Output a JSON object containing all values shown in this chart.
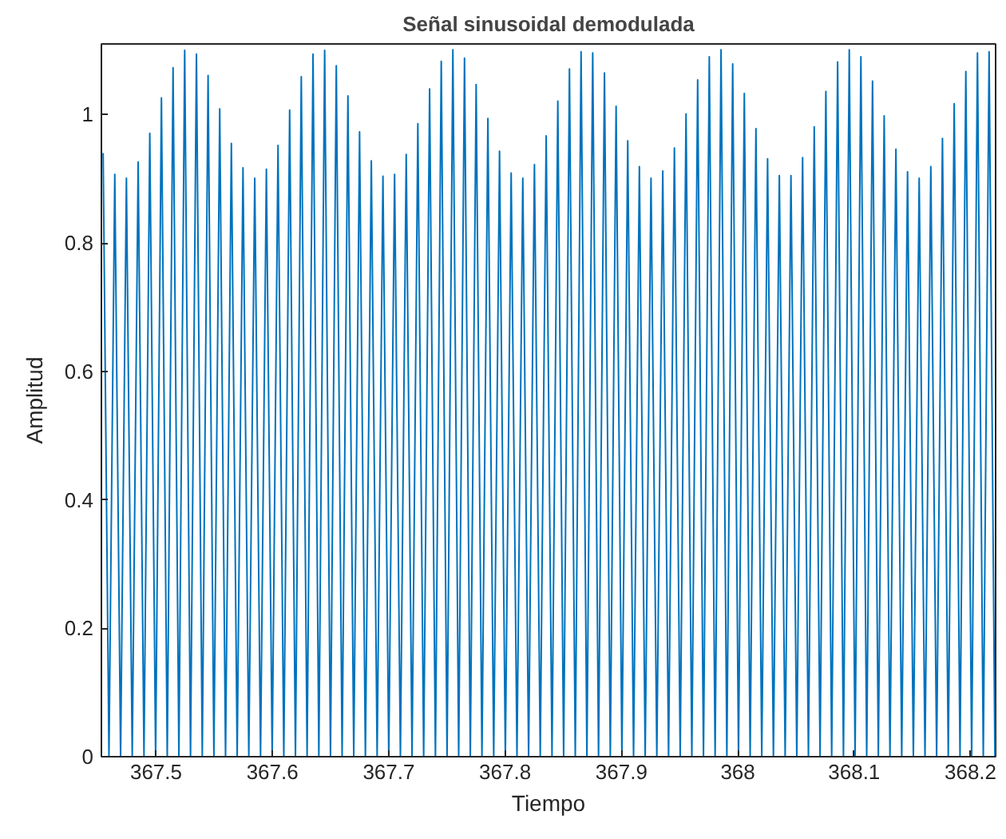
{
  "chart_data": {
    "type": "line",
    "title": "Señal sinusoidal demodulada",
    "xlabel": "Tiempo",
    "ylabel": "Amplitud",
    "x": [
      367.4545,
      367.4595,
      367.4645,
      367.4695,
      367.4745,
      367.4795,
      367.4846,
      367.4896,
      367.4946,
      367.4996,
      367.5046,
      367.5096,
      367.5146,
      367.5196,
      367.5246,
      367.5296,
      367.5347,
      367.5397,
      367.5447,
      367.5497,
      367.5547,
      367.5597,
      367.5647,
      367.5697,
      367.5747,
      367.5797,
      367.5848,
      367.5898,
      367.5948,
      367.5998,
      367.6048,
      367.6098,
      367.6148,
      367.6198,
      367.6248,
      367.6298,
      367.6349,
      367.6399,
      367.6449,
      367.6499,
      367.6549,
      367.6599,
      367.6649,
      367.6699,
      367.6749,
      367.6799,
      367.685,
      367.69,
      367.695,
      367.7,
      367.705,
      367.71,
      367.715,
      367.72,
      367.725,
      367.73,
      367.7351,
      367.7401,
      367.7451,
      367.7501,
      367.7551,
      367.7601,
      367.7651,
      367.7701,
      367.7751,
      367.7801,
      367.7852,
      367.7902,
      367.7952,
      367.8002,
      367.8052,
      367.8102,
      367.8152,
      367.8202,
      367.8252,
      367.8302,
      367.8353,
      367.8403,
      367.8453,
      367.8503,
      367.8553,
      367.8603,
      367.8653,
      367.8703,
      367.8753,
      367.8803,
      367.8854,
      367.8904,
      367.8954,
      367.9004,
      367.9054,
      367.9104,
      367.9154,
      367.9204,
      367.9254,
      367.9304,
      367.9355,
      367.9405,
      367.9455,
      367.9505,
      367.9555,
      367.9605,
      367.9655,
      367.9705,
      367.9755,
      367.9805,
      367.9856,
      367.9906,
      367.9956,
      368.0006,
      368.0056,
      368.0106,
      368.0156,
      368.0206,
      368.0256,
      368.0306,
      368.0357,
      368.0407,
      368.0457,
      368.0507,
      368.0557,
      368.0607,
      368.0657,
      368.0707,
      368.0757,
      368.0807,
      368.0858,
      368.0908,
      368.0958,
      368.1008,
      368.1058,
      368.1108,
      368.1158,
      368.1208,
      368.1258,
      368.1308,
      368.1359,
      368.1409,
      368.1459,
      368.1509,
      368.1559,
      368.1609,
      368.1659,
      368.1709,
      368.1759,
      368.1809,
      368.186,
      368.191,
      368.196,
      368.201,
      368.206,
      368.211,
      368.216,
      368.221
    ],
    "series": [
      {
        "color": "#0072bd",
        "values": [
          0.94,
          0,
          0.907,
          0,
          0.901,
          0,
          0.926,
          0,
          0.971,
          0,
          1.026,
          0,
          1.073,
          0,
          1.1,
          0,
          1.094,
          0,
          1.061,
          0,
          1.009,
          0,
          0.955,
          0,
          0.917,
          0,
          0.901,
          0,
          0.915,
          0,
          0.952,
          0,
          1.007,
          0,
          1.059,
          0,
          1.094,
          0,
          1.1,
          0,
          1.076,
          0,
          1.029,
          0,
          0.973,
          0,
          0.928,
          0,
          0.904,
          0,
          0.907,
          0,
          0.938,
          0,
          0.986,
          0,
          1.04,
          0,
          1.083,
          0,
          1.101,
          0,
          1.088,
          0,
          1.047,
          0,
          0.994,
          0,
          0.943,
          0,
          0.909,
          0,
          0.901,
          0,
          0.922,
          0,
          0.967,
          0,
          1.021,
          0,
          1.071,
          0,
          1.098,
          0,
          1.096,
          0,
          1.065,
          0,
          1.013,
          0,
          0.959,
          0,
          0.919,
          0,
          0.901,
          0,
          0.912,
          0,
          0.948,
          0,
          1.001,
          0,
          1.054,
          0,
          1.09,
          0,
          1.101,
          0,
          1.079,
          0,
          1.033,
          0,
          0.978,
          0,
          0.931,
          0,
          0.905,
          0,
          0.905,
          0,
          0.933,
          0,
          0.981,
          0,
          1.036,
          0,
          1.082,
          0,
          1.101,
          0,
          1.09,
          0,
          1.052,
          0,
          0.998,
          0,
          0.946,
          0,
          0.911,
          0,
          0.901,
          0,
          0.919,
          0,
          0.963,
          0,
          1.017,
          0,
          1.067,
          0,
          1.096,
          0,
          1.098,
          0
        ]
      }
    ],
    "xlim": [
      367.453,
      368.2216
    ],
    "ylim": [
      0,
      1.11
    ],
    "xticks": [
      367.5,
      367.6,
      367.7,
      367.8,
      367.9,
      368,
      368.1,
      368.2
    ],
    "yticks": [
      0,
      0.2,
      0.4,
      0.6,
      0.8,
      1
    ],
    "grid": false,
    "marker": "none",
    "line_style": "solid"
  }
}
